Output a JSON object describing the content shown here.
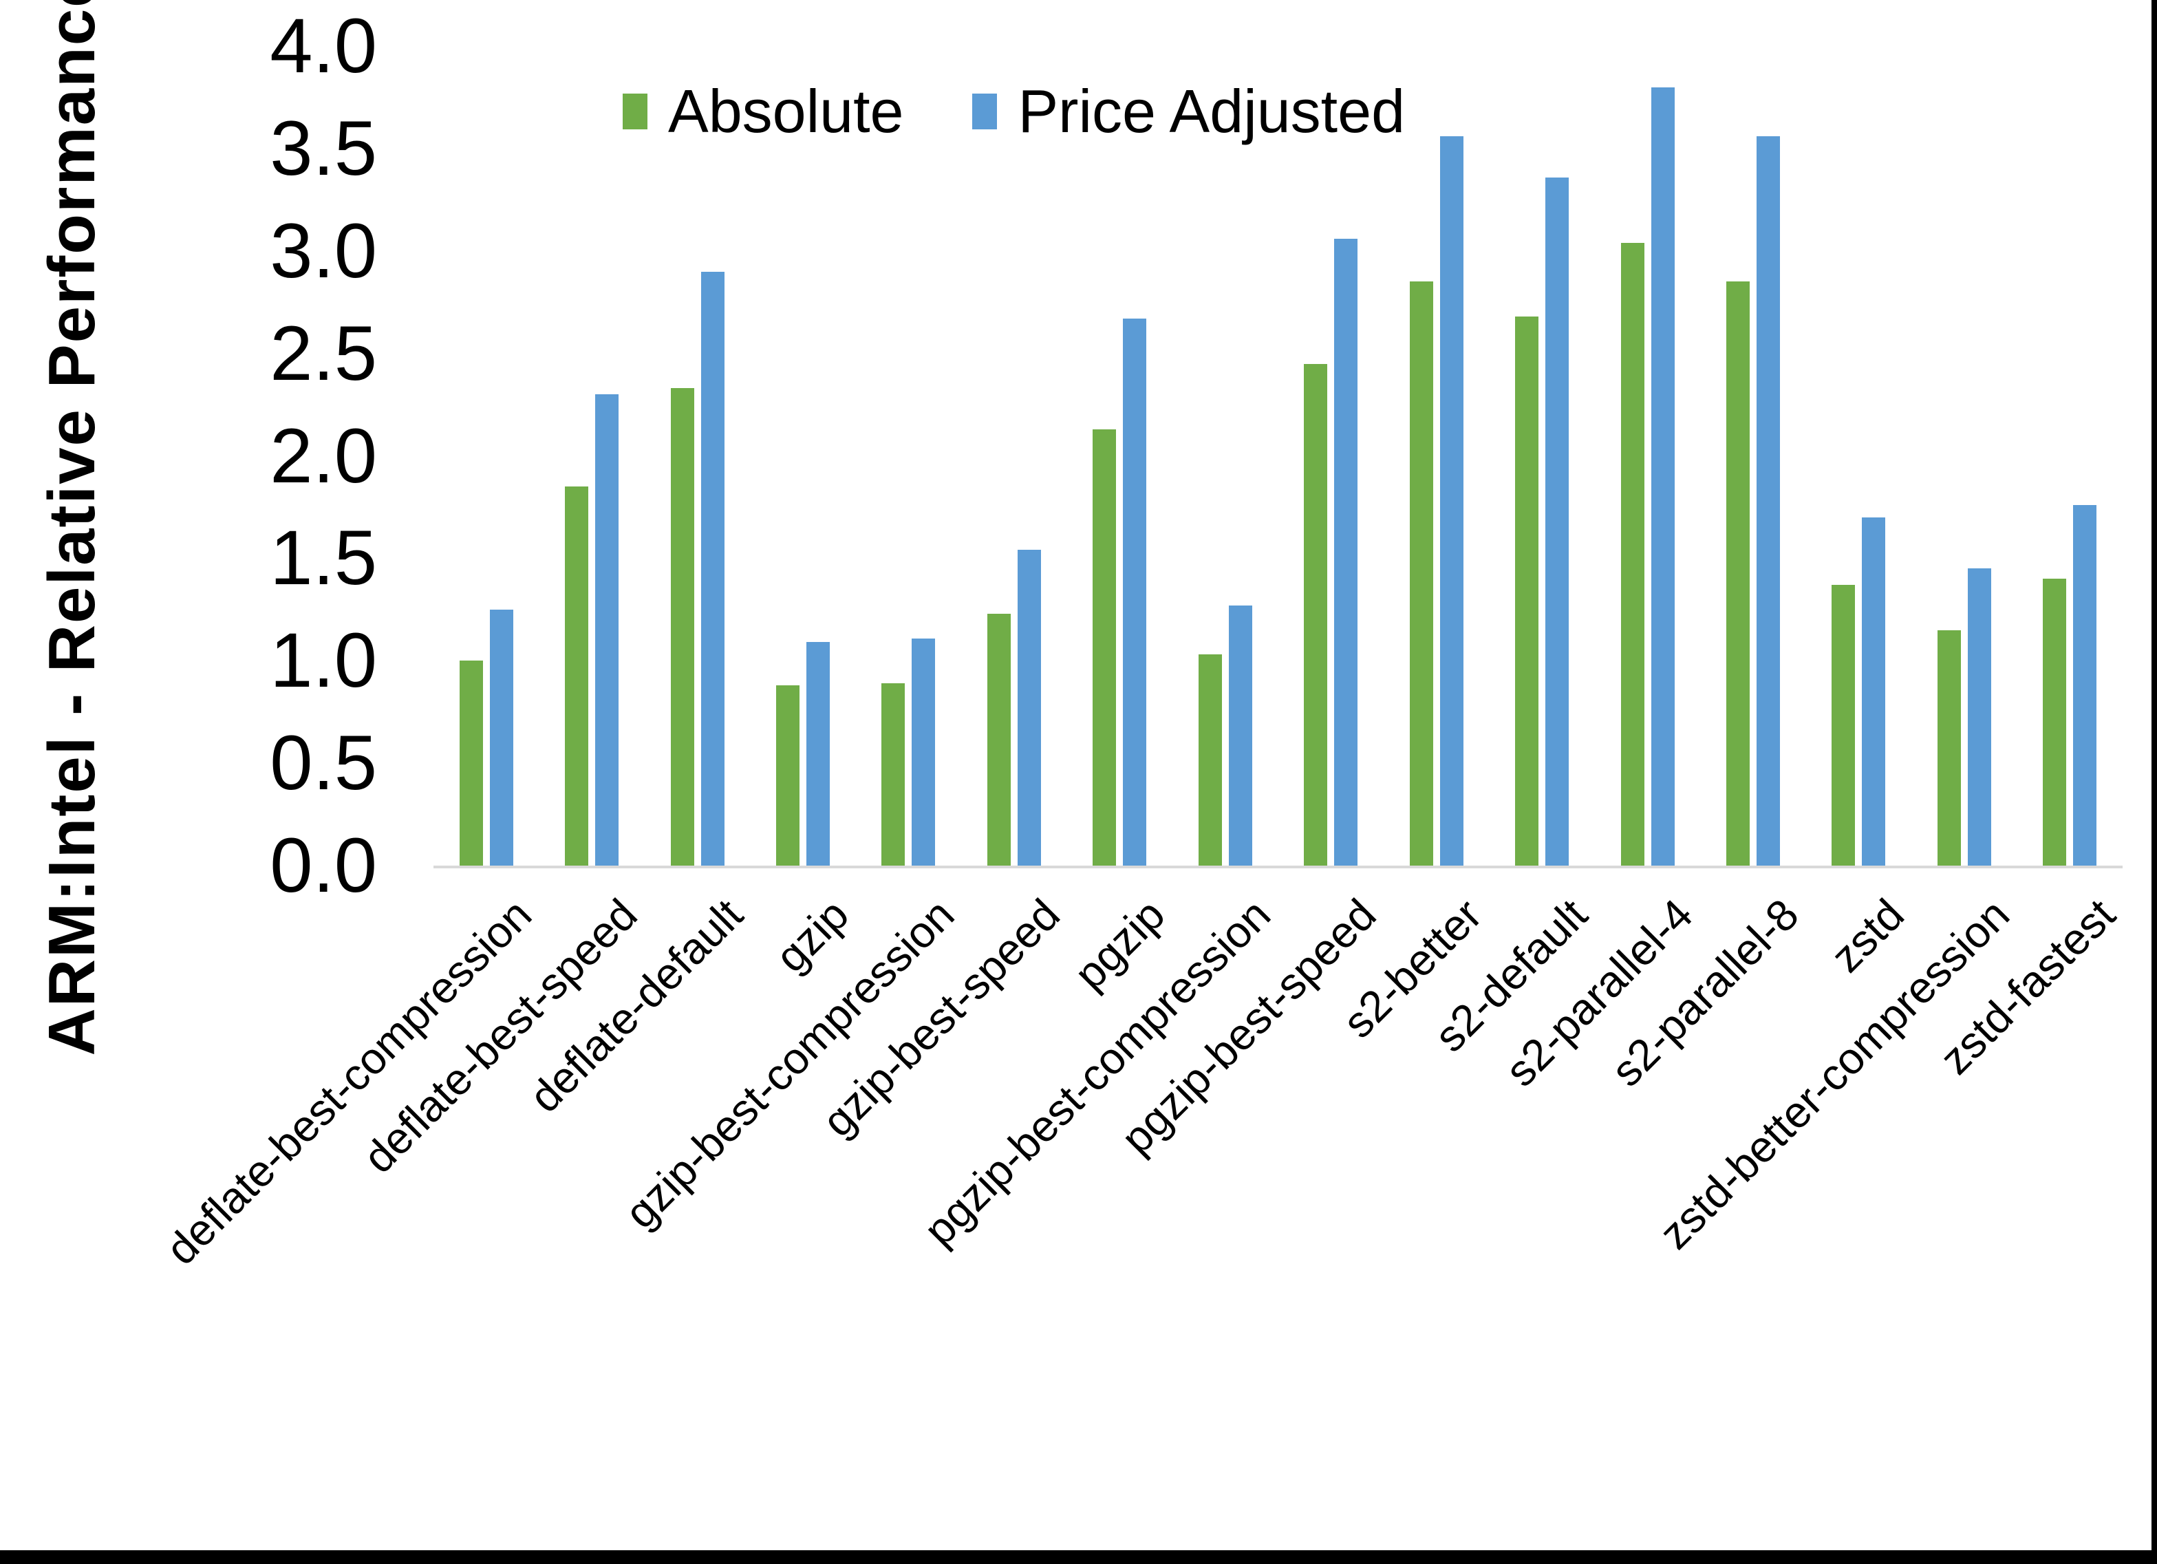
{
  "chart_data": {
    "type": "bar",
    "title": "",
    "xlabel": "",
    "ylabel": "ARM:Intel - Relative Performance",
    "ylim": [
      0,
      4.0
    ],
    "ytick_step": 0.5,
    "ytick_labels": [
      "0.0",
      "0.5",
      "1.0",
      "1.5",
      "2.0",
      "2.5",
      "3.0",
      "3.5",
      "4.0"
    ],
    "grid": false,
    "legend_position": "top-center",
    "categories": [
      "deflate-best-compression",
      "deflate-best-speed",
      "deflate-default",
      "gzip",
      "gzip-best-compression",
      "gzip-best-speed",
      "pgzip",
      "pgzip-best-compression",
      "pgzip-best-speed",
      "s2-better",
      "s2-default",
      "s2-parallel-4",
      "s2-parallel-8",
      "zstd",
      "zstd-better-compression",
      "zstd-fastest"
    ],
    "series": [
      {
        "name": "Absolute",
        "color": "#70AD47",
        "values": [
          1.0,
          1.85,
          2.33,
          0.88,
          0.89,
          1.23,
          2.13,
          1.03,
          2.45,
          2.85,
          2.68,
          3.04,
          2.85,
          1.37,
          1.15,
          1.4
        ]
      },
      {
        "name": "Price Adjusted",
        "color": "#5B9BD5",
        "values": [
          1.25,
          2.3,
          2.9,
          1.09,
          1.11,
          1.54,
          2.67,
          1.27,
          3.06,
          3.56,
          3.36,
          3.8,
          3.56,
          1.7,
          1.45,
          1.76
        ]
      }
    ],
    "colors": {
      "axis_line": "#D9D9D9",
      "text": "#000000",
      "background": "#FFFFFF",
      "window_border": "#000000"
    }
  }
}
